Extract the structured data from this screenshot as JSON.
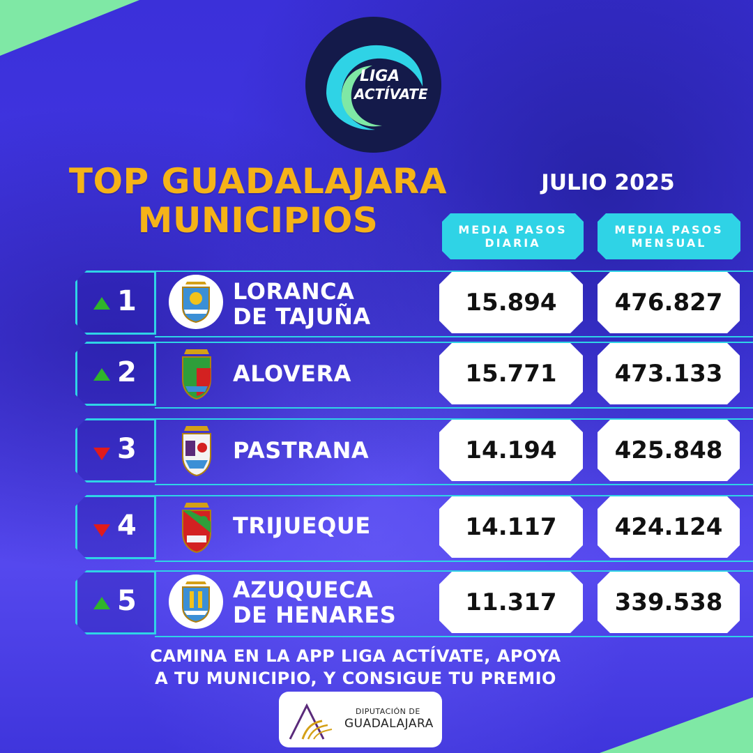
{
  "logo": {
    "line1": "LIGA",
    "line2": "ACTÍVATE"
  },
  "header": {
    "title_line1": "TOP GUADALAJARA",
    "title_line2": "MUNICIPIOS",
    "period": "JULIO 2025"
  },
  "columns": {
    "daily_line1": "MEDIA PASOS",
    "daily_line2": "DIARIA",
    "monthly_line1": "MEDIA PASOS",
    "monthly_line2": "MENSUAL"
  },
  "ranking": [
    {
      "rank": "1",
      "trend": "up",
      "name_line1": "LORANCA",
      "name_line2": "DE TAJUÑA",
      "crest_icon": "loranca-de-tajuna-crest",
      "daily": "15.894",
      "monthly": "476.827"
    },
    {
      "rank": "2",
      "trend": "up",
      "name_line1": "ALOVERA",
      "name_line2": "",
      "crest_icon": "alovera-crest",
      "daily": "15.771",
      "monthly": "473.133"
    },
    {
      "rank": "3",
      "trend": "down",
      "name_line1": "PASTRANA",
      "name_line2": "",
      "crest_icon": "pastrana-crest",
      "daily": "14.194",
      "monthly": "425.848"
    },
    {
      "rank": "4",
      "trend": "down",
      "name_line1": "TRIJUEQUE",
      "name_line2": "",
      "crest_icon": "trijueque-crest",
      "daily": "14.117",
      "monthly": "424.124"
    },
    {
      "rank": "5",
      "trend": "up",
      "name_line1": "AZUQUECA",
      "name_line2": "DE HENARES",
      "crest_icon": "azuqueca-de-henares-crest",
      "daily": "11.317",
      "monthly": "339.538"
    }
  ],
  "footer": {
    "cta_line1": "CAMINA EN LA APP LIGA ACTÍVATE, APOYA",
    "cta_line2": "A TU MUNICIPIO, Y CONSIGUE TU PREMIO",
    "sponsor_top": "DIPUTACIÓN DE",
    "sponsor_main": "GUADALAJARA"
  },
  "colors": {
    "accent_title": "#f5b318",
    "accent_cyan": "#2fd3e6",
    "trend_up": "#2fb52a",
    "trend_down": "#e01b1b",
    "background": "#3a2fd8"
  }
}
